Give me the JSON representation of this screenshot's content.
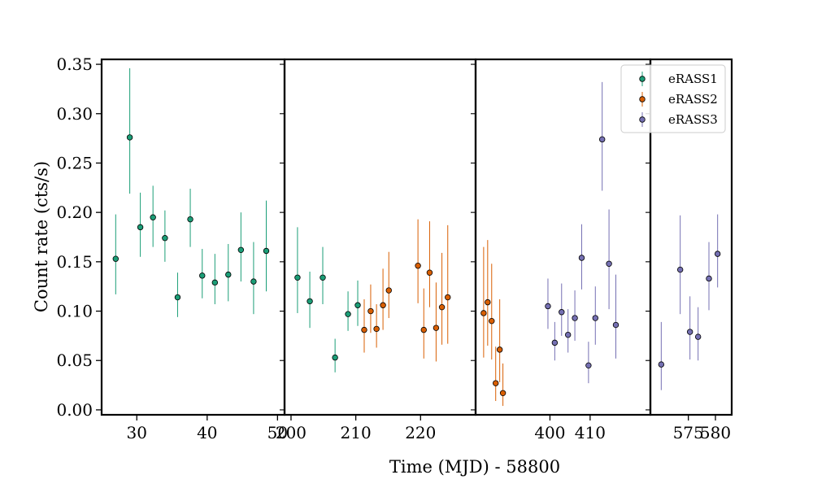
{
  "chart_data": {
    "type": "scatter",
    "ylabel": "Count rate (cts/s)",
    "xlabel": "Time (MJD) - 58800",
    "ylim": [
      -0.005,
      0.355
    ],
    "yticks": [
      0.0,
      0.05,
      0.1,
      0.15,
      0.2,
      0.25,
      0.3,
      0.35
    ],
    "ytick_labels": [
      "0.00",
      "0.05",
      "0.10",
      "0.15",
      "0.20",
      "0.25",
      "0.30",
      "0.35"
    ],
    "legend_position": "top-right",
    "grid": false,
    "panels": [
      {
        "name": "panel-1",
        "xlim": [
          25.0,
          51.0
        ],
        "xticks": [
          30,
          40,
          50
        ],
        "xtick_labels": [
          "30",
          "40",
          "50"
        ]
      },
      {
        "name": "panel-2",
        "xlim": [
          199.0,
          228.5
        ],
        "xticks": [
          200,
          210,
          220
        ],
        "xtick_labels": [
          "200",
          "210",
          "220"
        ]
      },
      {
        "name": "panel-3",
        "xlim": [
          381.5,
          425.0
        ],
        "xticks": [
          400,
          410
        ],
        "xtick_labels": [
          "400",
          "410"
        ]
      },
      {
        "name": "panel-4",
        "xlim": [
          568.0,
          583.0
        ],
        "xticks": [
          575,
          580
        ],
        "xtick_labels": [
          "575",
          "580"
        ]
      }
    ],
    "series": [
      {
        "name": "eRASS1",
        "color": "#1b9e77",
        "points": [
          {
            "panel": 0,
            "x": 27.0,
            "y": 0.153,
            "lo": 0.117,
            "hi": 0.198
          },
          {
            "panel": 0,
            "x": 29.0,
            "y": 0.276,
            "lo": 0.219,
            "hi": 0.346
          },
          {
            "panel": 0,
            "x": 30.5,
            "y": 0.185,
            "lo": 0.155,
            "hi": 0.22
          },
          {
            "panel": 0,
            "x": 32.3,
            "y": 0.195,
            "lo": 0.165,
            "hi": 0.227
          },
          {
            "panel": 0,
            "x": 34.0,
            "y": 0.174,
            "lo": 0.15,
            "hi": 0.202
          },
          {
            "panel": 0,
            "x": 35.8,
            "y": 0.114,
            "lo": 0.094,
            "hi": 0.139
          },
          {
            "panel": 0,
            "x": 37.6,
            "y": 0.193,
            "lo": 0.165,
            "hi": 0.224
          },
          {
            "panel": 0,
            "x": 39.3,
            "y": 0.136,
            "lo": 0.113,
            "hi": 0.163
          },
          {
            "panel": 0,
            "x": 41.1,
            "y": 0.129,
            "lo": 0.107,
            "hi": 0.158
          },
          {
            "panel": 0,
            "x": 43.0,
            "y": 0.137,
            "lo": 0.11,
            "hi": 0.168
          },
          {
            "panel": 0,
            "x": 44.8,
            "y": 0.162,
            "lo": 0.13,
            "hi": 0.2
          },
          {
            "panel": 0,
            "x": 46.6,
            "y": 0.13,
            "lo": 0.097,
            "hi": 0.17
          },
          {
            "panel": 0,
            "x": 48.4,
            "y": 0.161,
            "lo": 0.12,
            "hi": 0.212
          },
          {
            "panel": 1,
            "x": 201.0,
            "y": 0.134,
            "lo": 0.098,
            "hi": 0.185
          },
          {
            "panel": 1,
            "x": 202.9,
            "y": 0.11,
            "lo": 0.083,
            "hi": 0.14
          },
          {
            "panel": 1,
            "x": 204.9,
            "y": 0.134,
            "lo": 0.107,
            "hi": 0.165
          },
          {
            "panel": 1,
            "x": 206.8,
            "y": 0.053,
            "lo": 0.038,
            "hi": 0.072
          },
          {
            "panel": 1,
            "x": 208.8,
            "y": 0.097,
            "lo": 0.08,
            "hi": 0.12
          },
          {
            "panel": 1,
            "x": 210.3,
            "y": 0.106,
            "lo": 0.085,
            "hi": 0.131
          }
        ]
      },
      {
        "name": "eRASS2",
        "color": "#d95f02",
        "points": [
          {
            "panel": 1,
            "x": 211.3,
            "y": 0.081,
            "lo": 0.058,
            "hi": 0.112
          },
          {
            "panel": 1,
            "x": 212.3,
            "y": 0.1,
            "lo": 0.078,
            "hi": 0.127
          },
          {
            "panel": 1,
            "x": 213.2,
            "y": 0.082,
            "lo": 0.063,
            "hi": 0.107
          },
          {
            "panel": 1,
            "x": 214.2,
            "y": 0.106,
            "lo": 0.081,
            "hi": 0.143
          },
          {
            "panel": 1,
            "x": 215.1,
            "y": 0.121,
            "lo": 0.093,
            "hi": 0.16
          },
          {
            "panel": 1,
            "x": 219.6,
            "y": 0.146,
            "lo": 0.108,
            "hi": 0.193
          },
          {
            "panel": 1,
            "x": 220.5,
            "y": 0.081,
            "lo": 0.052,
            "hi": 0.123
          },
          {
            "panel": 1,
            "x": 221.4,
            "y": 0.139,
            "lo": 0.104,
            "hi": 0.191
          },
          {
            "panel": 1,
            "x": 222.4,
            "y": 0.083,
            "lo": 0.049,
            "hi": 0.129
          },
          {
            "panel": 1,
            "x": 223.3,
            "y": 0.104,
            "lo": 0.066,
            "hi": 0.159
          },
          {
            "panel": 1,
            "x": 224.2,
            "y": 0.114,
            "lo": 0.067,
            "hi": 0.187
          },
          {
            "panel": 2,
            "x": 383.5,
            "y": 0.098,
            "lo": 0.053,
            "hi": 0.165
          },
          {
            "panel": 2,
            "x": 384.5,
            "y": 0.109,
            "lo": 0.065,
            "hi": 0.172
          },
          {
            "panel": 2,
            "x": 385.5,
            "y": 0.09,
            "lo": 0.051,
            "hi": 0.148
          },
          {
            "panel": 2,
            "x": 386.5,
            "y": 0.027,
            "lo": 0.009,
            "hi": 0.064
          },
          {
            "panel": 2,
            "x": 387.5,
            "y": 0.061,
            "lo": 0.028,
            "hi": 0.112
          },
          {
            "panel": 2,
            "x": 388.3,
            "y": 0.017,
            "lo": 0.004,
            "hi": 0.047
          }
        ]
      },
      {
        "name": "eRASS3",
        "color": "#7570b3",
        "points": [
          {
            "panel": 2,
            "x": 399.5,
            "y": 0.105,
            "lo": 0.082,
            "hi": 0.133
          },
          {
            "panel": 2,
            "x": 401.2,
            "y": 0.068,
            "lo": 0.05,
            "hi": 0.089
          },
          {
            "panel": 2,
            "x": 402.9,
            "y": 0.099,
            "lo": 0.075,
            "hi": 0.128
          },
          {
            "panel": 2,
            "x": 404.5,
            "y": 0.076,
            "lo": 0.058,
            "hi": 0.102
          },
          {
            "panel": 2,
            "x": 406.2,
            "y": 0.093,
            "lo": 0.07,
            "hi": 0.121
          },
          {
            "panel": 2,
            "x": 407.9,
            "y": 0.154,
            "lo": 0.122,
            "hi": 0.188
          },
          {
            "panel": 2,
            "x": 409.6,
            "y": 0.045,
            "lo": 0.027,
            "hi": 0.069
          },
          {
            "panel": 2,
            "x": 411.3,
            "y": 0.093,
            "lo": 0.066,
            "hi": 0.125
          },
          {
            "panel": 2,
            "x": 413.0,
            "y": 0.274,
            "lo": 0.222,
            "hi": 0.332
          },
          {
            "panel": 2,
            "x": 414.7,
            "y": 0.148,
            "lo": 0.102,
            "hi": 0.203
          },
          {
            "panel": 2,
            "x": 416.4,
            "y": 0.086,
            "lo": 0.052,
            "hi": 0.137
          },
          {
            "panel": 3,
            "x": 570.0,
            "y": 0.046,
            "lo": 0.02,
            "hi": 0.089
          },
          {
            "panel": 3,
            "x": 573.5,
            "y": 0.142,
            "lo": 0.097,
            "hi": 0.197
          },
          {
            "panel": 3,
            "x": 575.3,
            "y": 0.079,
            "lo": 0.051,
            "hi": 0.115
          },
          {
            "panel": 3,
            "x": 576.8,
            "y": 0.074,
            "lo": 0.05,
            "hi": 0.104
          },
          {
            "panel": 3,
            "x": 578.8,
            "y": 0.133,
            "lo": 0.101,
            "hi": 0.17
          },
          {
            "panel": 3,
            "x": 580.4,
            "y": 0.158,
            "lo": 0.124,
            "hi": 0.198
          }
        ]
      }
    ]
  }
}
